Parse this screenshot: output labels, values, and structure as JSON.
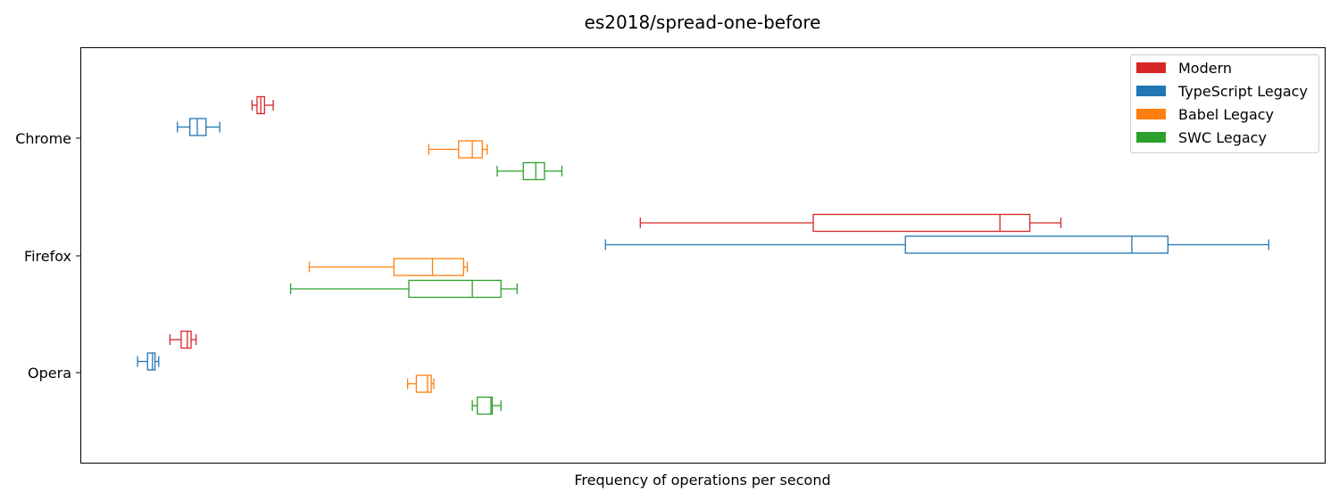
{
  "chart_data": {
    "type": "boxplot",
    "orientation": "horizontal",
    "title": "es2018/spread-one-before",
    "xlabel": "Frequency of operations per second",
    "ylabel": "",
    "x_ticks_shown": false,
    "xlim": [
      0,
      1000
    ],
    "categories": [
      "Chrome",
      "Firefox",
      "Opera"
    ],
    "legend": {
      "position": "top-right"
    },
    "series": [
      {
        "name": "Modern",
        "color": "#d62728",
        "boxes": [
          {
            "category": "Chrome",
            "whisker_low": 138,
            "q1": 142,
            "median": 145,
            "q3": 148,
            "whisker_high": 155
          },
          {
            "category": "Firefox",
            "whisker_low": 450,
            "q1": 589,
            "median": 739,
            "q3": 763,
            "whisker_high": 788
          },
          {
            "category": "Opera",
            "whisker_low": 72,
            "q1": 81,
            "median": 86,
            "q3": 89,
            "whisker_high": 93
          }
        ]
      },
      {
        "name": "TypeScript Legacy",
        "color": "#1f77b4",
        "boxes": [
          {
            "category": "Chrome",
            "whisker_low": 78,
            "q1": 88,
            "median": 94,
            "q3": 101,
            "whisker_high": 112
          },
          {
            "category": "Firefox",
            "whisker_low": 422,
            "q1": 663,
            "median": 845,
            "q3": 874,
            "whisker_high": 955
          },
          {
            "category": "Opera",
            "whisker_low": 46,
            "q1": 54,
            "median": 58,
            "q3": 60,
            "whisker_high": 63
          }
        ]
      },
      {
        "name": "Babel Legacy",
        "color": "#ff7f0e",
        "boxes": [
          {
            "category": "Chrome",
            "whisker_low": 280,
            "q1": 304,
            "median": 315,
            "q3": 323,
            "whisker_high": 327
          },
          {
            "category": "Firefox",
            "whisker_low": 184,
            "q1": 252,
            "median": 283,
            "q3": 308,
            "whisker_high": 311
          },
          {
            "category": "Opera",
            "whisker_low": 263,
            "q1": 270,
            "median": 279,
            "q3": 282,
            "whisker_high": 284
          }
        ]
      },
      {
        "name": "SWC Legacy",
        "color": "#2ca02c",
        "boxes": [
          {
            "category": "Chrome",
            "whisker_low": 335,
            "q1": 356,
            "median": 366,
            "q3": 373,
            "whisker_high": 387
          },
          {
            "category": "Firefox",
            "whisker_low": 169,
            "q1": 264,
            "median": 315,
            "q3": 338,
            "whisker_high": 351
          },
          {
            "category": "Opera",
            "whisker_low": 315,
            "q1": 319,
            "median": 330,
            "q3": 331,
            "whisker_high": 338
          }
        ]
      }
    ]
  }
}
